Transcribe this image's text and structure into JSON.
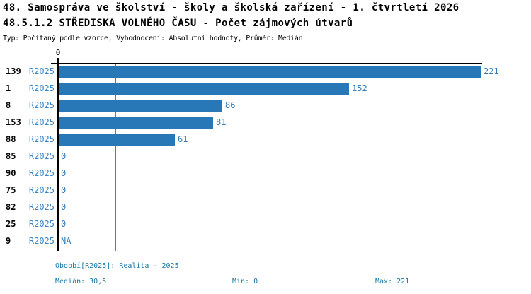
{
  "header": {
    "title_line1": "48. Samospráva ve školství - školy a školská zařízení - 1. čtvrtletí 2026",
    "title_line2": "48.5.1.2 STŘEDISKA VOLNÉHO ČASU - Počet zájmových útvarů",
    "meta_line": "Typ: Počítaný podle vzorce, Vyhodnocení: Absolutní hodnoty, Průměr: Medián"
  },
  "chart_data": {
    "type": "bar",
    "orientation": "horizontal",
    "title": "48.5.1.2 STŘEDISKA VOLNÉHO ČASU - Počet zájmových útvarů",
    "xlim": [
      0,
      221
    ],
    "axis_tick_label": "0",
    "median_value": 30.5,
    "grid": "single median line",
    "categories": [
      "139",
      "1",
      "8",
      "153",
      "88",
      "85",
      "90",
      "75",
      "82",
      "25",
      "9"
    ],
    "series": [
      {
        "name": "R2025",
        "values": [
          221,
          152,
          86,
          81,
          61,
          0,
          0,
          0,
          0,
          0,
          null
        ],
        "value_labels": [
          "221",
          "152",
          "86",
          "81",
          "61",
          "0",
          "0",
          "0",
          "0",
          "0",
          "NA"
        ]
      }
    ],
    "colors": {
      "bar": "#2878b8",
      "axis": "#000000",
      "median_line": "#3c85ba",
      "category_label": "#000000",
      "series_label": "#3d85c4",
      "value_label": "#2f7cb8"
    }
  },
  "footer": {
    "period_info": "Období[R2025]: Realita - 2025",
    "median": "Medián: 30,5",
    "min": "Min: 0",
    "max": "Max: 221",
    "text_color": "#1878a5"
  }
}
